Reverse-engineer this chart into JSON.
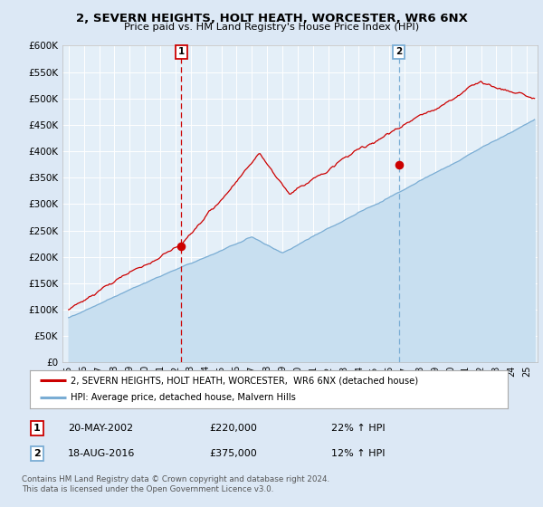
{
  "title": "2, SEVERN HEIGHTS, HOLT HEATH, WORCESTER, WR6 6NX",
  "subtitle": "Price paid vs. HM Land Registry's House Price Index (HPI)",
  "legend_line1": "2, SEVERN HEIGHTS, HOLT HEATH, WORCESTER,  WR6 6NX (detached house)",
  "legend_line2": "HPI: Average price, detached house, Malvern Hills",
  "annotation1_label": "1",
  "annotation1_date": "20-MAY-2002",
  "annotation1_price": "£220,000",
  "annotation1_hpi": "22% ↑ HPI",
  "annotation2_label": "2",
  "annotation2_date": "18-AUG-2016",
  "annotation2_price": "£375,000",
  "annotation2_hpi": "12% ↑ HPI",
  "footnote": "Contains HM Land Registry data © Crown copyright and database right 2024.\nThis data is licensed under the Open Government Licence v3.0.",
  "hpi_color": "#7aadd4",
  "hpi_fill_color": "#c8dff0",
  "price_color": "#cc0000",
  "dot_color": "#cc0000",
  "vline1_color": "#cc0000",
  "vline2_color": "#7aadd4",
  "bg_color": "#dce8f5",
  "plot_bg": "#e4eff8",
  "ylim": [
    0,
    600000
  ],
  "xlim_left": 1994.6,
  "xlim_right": 2025.7,
  "sale1_year": 2002.38,
  "sale1_price": 220000,
  "sale2_year": 2016.62,
  "sale2_price": 375000,
  "figwidth": 6.0,
  "figheight": 5.6,
  "dpi": 100
}
